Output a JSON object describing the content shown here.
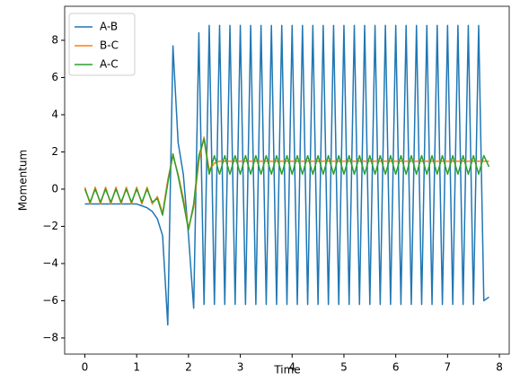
{
  "chart_data": {
    "type": "line",
    "xlabel": "Time",
    "ylabel": "Momentum",
    "x": [
      0,
      0.1,
      0.2,
      0.3,
      0.4,
      0.5,
      0.6,
      0.7,
      0.8,
      0.9,
      1.0,
      1.1,
      1.2,
      1.3,
      1.4,
      1.5,
      1.6,
      1.7,
      1.8,
      1.9,
      2.0,
      2.1,
      2.2,
      2.3,
      2.4,
      2.5,
      2.6,
      2.7,
      2.8,
      2.9,
      3.0,
      3.1,
      3.2,
      3.3,
      3.4,
      3.5,
      3.6,
      3.7,
      3.8,
      3.9,
      4.0,
      4.1,
      4.2,
      4.3,
      4.4,
      4.5,
      4.6,
      4.7,
      4.8,
      4.9,
      5.0,
      5.1,
      5.2,
      5.3,
      5.4,
      5.5,
      5.6,
      5.7,
      5.8,
      5.9,
      6.0,
      6.1,
      6.2,
      6.3,
      6.4,
      6.5,
      6.6,
      6.7,
      6.8,
      6.9,
      7.0,
      7.1,
      7.2,
      7.3,
      7.4,
      7.5,
      7.6,
      7.7,
      7.8
    ],
    "series": [
      {
        "name": "A-B",
        "color": "#1f77b4",
        "values": [
          -0.8,
          -0.8,
          -0.8,
          -0.8,
          -0.8,
          -0.8,
          -0.8,
          -0.8,
          -0.8,
          -0.8,
          -0.8,
          -0.9,
          -1.0,
          -1.2,
          -1.6,
          -2.5,
          -7.3,
          7.7,
          2.5,
          0.8,
          -2.5,
          -6.4,
          8.4,
          -6.2,
          8.8,
          -6.2,
          8.8,
          -6.2,
          8.8,
          -6.2,
          8.8,
          -6.2,
          8.8,
          -6.2,
          8.8,
          -6.2,
          8.8,
          -6.2,
          8.8,
          -6.2,
          8.8,
          -6.2,
          8.8,
          -6.2,
          8.8,
          -6.2,
          8.8,
          -6.2,
          8.8,
          -6.2,
          8.8,
          -6.2,
          8.8,
          -6.2,
          8.8,
          -6.2,
          8.8,
          -6.2,
          8.8,
          -6.2,
          8.8,
          -6.2,
          8.8,
          -6.2,
          8.8,
          -6.2,
          8.8,
          -6.2,
          8.8,
          -6.2,
          8.8,
          -6.2,
          8.8,
          -6.2,
          8.8,
          -6.2,
          8.8,
          -6.0,
          -5.8
        ]
      },
      {
        "name": "B-C",
        "color": "#ff7f0e",
        "values": [
          0.1,
          -0.8,
          0.1,
          -0.8,
          0.1,
          -0.8,
          0.1,
          -0.8,
          0.1,
          -0.8,
          0.1,
          -0.8,
          0.1,
          -0.8,
          -0.4,
          -1.3,
          0.5,
          1.8,
          0.8,
          -0.5,
          -2.1,
          -1.0,
          1.5,
          2.8,
          1.0,
          1.4,
          1.5,
          1.5,
          1.5,
          1.5,
          1.5,
          1.5,
          1.5,
          1.5,
          1.5,
          1.5,
          1.5,
          1.5,
          1.5,
          1.5,
          1.5,
          1.5,
          1.5,
          1.5,
          1.5,
          1.5,
          1.5,
          1.5,
          1.5,
          1.5,
          1.5,
          1.5,
          1.5,
          1.5,
          1.5,
          1.5,
          1.5,
          1.5,
          1.5,
          1.5,
          1.5,
          1.5,
          1.5,
          1.5,
          1.5,
          1.5,
          1.5,
          1.5,
          1.5,
          1.5,
          1.5,
          1.5,
          1.5,
          1.5,
          1.5,
          1.5,
          1.5,
          1.5,
          1.5
        ]
      },
      {
        "name": "A-C",
        "color": "#2ca02c",
        "values": [
          0.0,
          -0.7,
          0.0,
          -0.7,
          0.0,
          -0.7,
          0.0,
          -0.7,
          0.0,
          -0.7,
          0.0,
          -0.7,
          0.0,
          -0.7,
          -0.5,
          -1.4,
          0.3,
          1.9,
          0.7,
          -0.7,
          -2.2,
          -0.8,
          1.8,
          2.7,
          0.8,
          1.8,
          0.8,
          1.8,
          0.8,
          1.8,
          0.8,
          1.8,
          0.8,
          1.8,
          0.8,
          1.8,
          0.8,
          1.8,
          0.8,
          1.8,
          0.8,
          1.8,
          0.8,
          1.8,
          0.8,
          1.8,
          0.8,
          1.8,
          0.8,
          1.8,
          0.8,
          1.8,
          0.8,
          1.8,
          0.8,
          1.8,
          0.8,
          1.8,
          0.8,
          1.8,
          0.8,
          1.8,
          0.8,
          1.8,
          0.8,
          1.8,
          0.8,
          1.8,
          0.8,
          1.8,
          0.8,
          1.8,
          0.8,
          1.8,
          0.8,
          1.8,
          0.8,
          1.8,
          1.2
        ]
      }
    ],
    "xlim": [
      -0.39,
      8.19
    ],
    "ylim": [
      -8.87,
      9.83
    ],
    "xticks": [
      0,
      1,
      2,
      3,
      4,
      5,
      6,
      7,
      8
    ],
    "yticks": [
      {
        "value": -8,
        "label": "−8"
      },
      {
        "value": -6,
        "label": "−6"
      },
      {
        "value": -4,
        "label": "−4"
      },
      {
        "value": -2,
        "label": "−2"
      },
      0,
      2,
      4,
      6,
      8
    ],
    "legend": "upper left"
  }
}
